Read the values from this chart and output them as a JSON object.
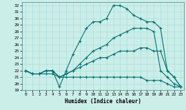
{
  "title": "",
  "xlabel": "Humidex (Indice chaleur)",
  "ylabel": "",
  "bg_color": "#cceee8",
  "line_color": "#007070",
  "grid_color": "#aadddd",
  "xlim": [
    -0.5,
    23.5
  ],
  "ylim": [
    19,
    32.5
  ],
  "xtick_labels": [
    "0",
    "1",
    "2",
    "3",
    "4",
    "5",
    "6",
    "7",
    "8",
    "9",
    "10",
    "11",
    "12",
    "13",
    "14",
    "15",
    "16",
    "17",
    "18",
    "19",
    "20",
    "21",
    "22",
    "23"
  ],
  "xticks": [
    0,
    1,
    2,
    3,
    4,
    5,
    6,
    7,
    8,
    9,
    10,
    11,
    12,
    13,
    14,
    15,
    16,
    17,
    18,
    19,
    20,
    21,
    22,
    23
  ],
  "yticks": [
    19,
    20,
    21,
    22,
    23,
    24,
    25,
    26,
    27,
    28,
    29,
    30,
    31,
    32
  ],
  "lines": [
    {
      "x": [
        0,
        1,
        2,
        3,
        4,
        5,
        6,
        7,
        8,
        9,
        10,
        11,
        12,
        13,
        14,
        15,
        16,
        17,
        18,
        19,
        20,
        21,
        22,
        23
      ],
      "y": [
        22,
        21.5,
        21.5,
        22,
        22,
        19.5,
        22,
        24.5,
        26.5,
        28.5,
        29.5,
        29.5,
        30,
        32,
        32,
        31.5,
        30.5,
        30,
        29.5,
        29.5,
        28.5,
        22,
        21,
        19.5
      ]
    },
    {
      "x": [
        0,
        1,
        2,
        3,
        4,
        5,
        6,
        7,
        8,
        9,
        10,
        11,
        12,
        13,
        14,
        15,
        16,
        17,
        18,
        19,
        20,
        21,
        22,
        23
      ],
      "y": [
        22,
        21.5,
        21.5,
        22,
        22,
        21,
        21.5,
        22,
        23,
        24,
        25,
        25.5,
        26,
        27,
        27.5,
        28,
        28.5,
        28.5,
        28.5,
        28,
        22,
        21,
        20,
        19.5
      ]
    },
    {
      "x": [
        0,
        1,
        2,
        3,
        4,
        5,
        6,
        7,
        8,
        9,
        10,
        11,
        12,
        13,
        14,
        15,
        16,
        17,
        18,
        19,
        20,
        21,
        22,
        23
      ],
      "y": [
        22,
        21.5,
        21.5,
        22,
        22,
        21,
        21.5,
        22,
        22.5,
        23,
        23.5,
        24,
        24,
        24.5,
        25,
        25,
        25,
        25.5,
        25.5,
        25,
        25,
        22,
        21,
        19.5
      ]
    },
    {
      "x": [
        0,
        1,
        2,
        3,
        4,
        5,
        6,
        7,
        8,
        9,
        10,
        11,
        12,
        13,
        14,
        15,
        16,
        17,
        18,
        19,
        20,
        21,
        22,
        23
      ],
      "y": [
        22,
        21.5,
        21.5,
        21.5,
        21.5,
        21,
        21,
        21,
        21,
        21,
        21,
        21,
        21,
        21,
        21,
        21,
        21,
        21,
        20.5,
        20.5,
        20.5,
        20,
        19.5,
        19.5
      ]
    }
  ]
}
